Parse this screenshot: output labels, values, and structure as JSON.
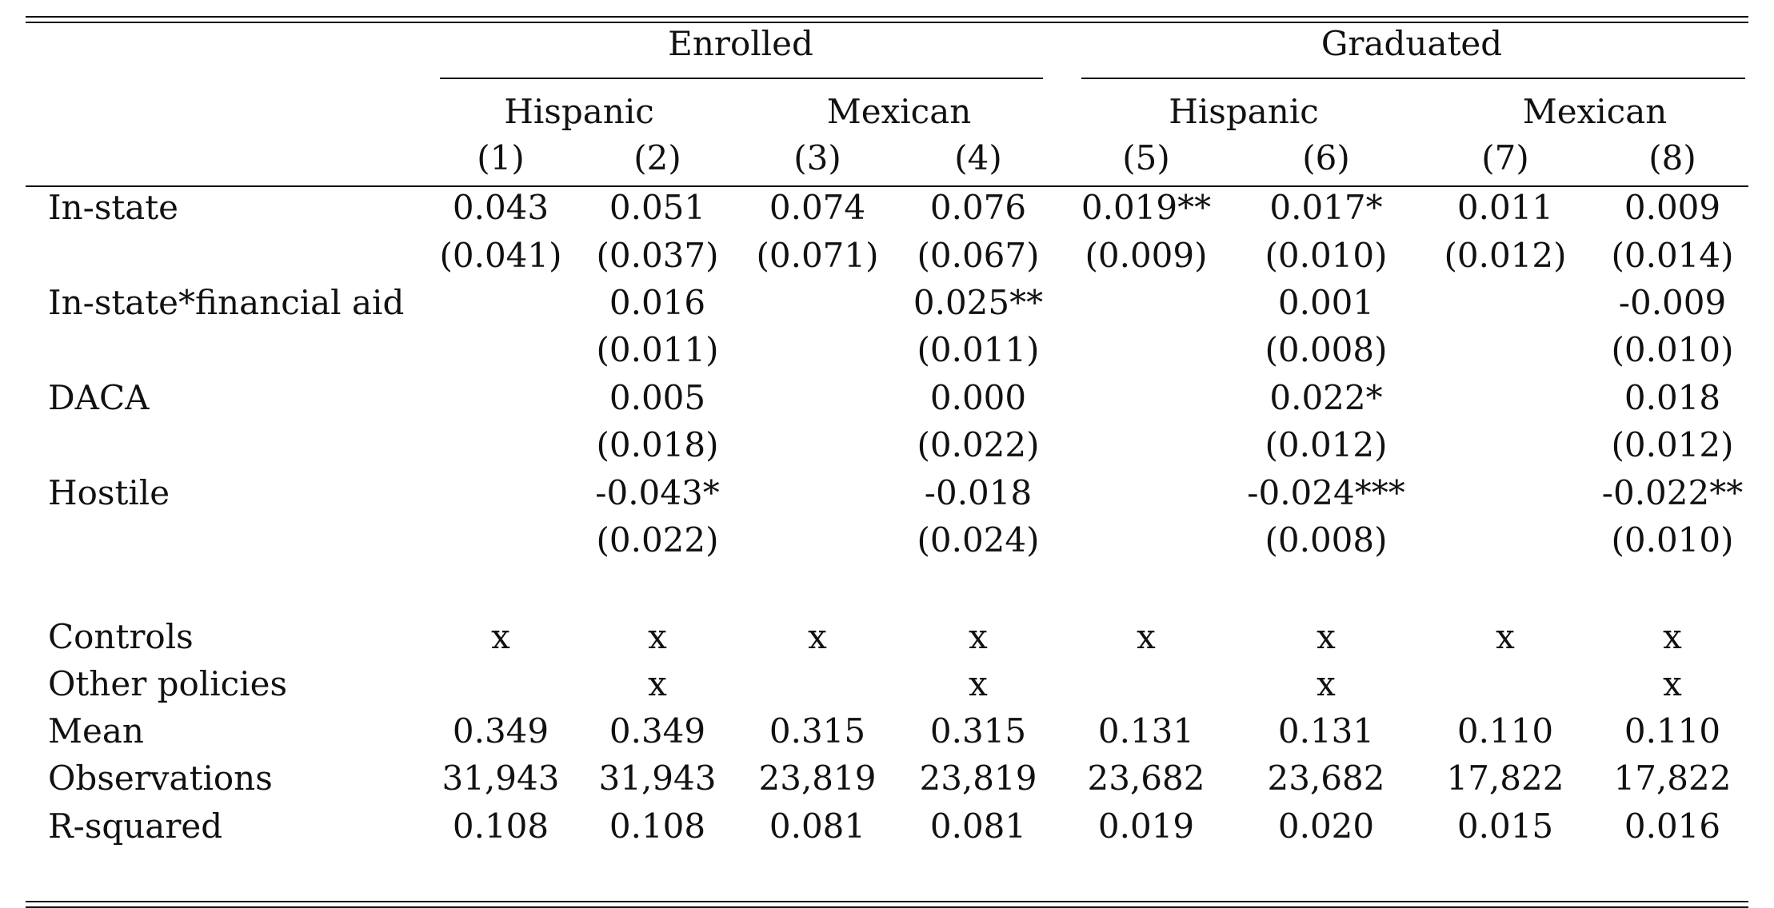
{
  "table": {
    "group_headers": [
      "Enrolled",
      "Graduated"
    ],
    "subgroup_headers": [
      "Hispanic",
      "Mexican",
      "Hispanic",
      "Mexican"
    ],
    "column_numbers": [
      "(1)",
      "(2)",
      "(3)",
      "(4)",
      "(5)",
      "(6)",
      "(7)",
      "(8)"
    ],
    "rows": [
      {
        "label": "In-state",
        "cells": [
          "0.043",
          "0.051",
          "0.074",
          "0.076",
          "0.019**",
          "0.017*",
          "0.011",
          "0.009"
        ]
      },
      {
        "label": "",
        "cells": [
          "(0.041)",
          "(0.037)",
          "(0.071)",
          "(0.067)",
          "(0.009)",
          "(0.010)",
          "(0.012)",
          "(0.014)"
        ]
      },
      {
        "label": "In-state*financial aid",
        "cells": [
          "",
          "0.016",
          "",
          "0.025**",
          "",
          "0.001",
          "",
          "-0.009"
        ]
      },
      {
        "label": "",
        "cells": [
          "",
          "(0.011)",
          "",
          "(0.011)",
          "",
          "(0.008)",
          "",
          "(0.010)"
        ]
      },
      {
        "label": "DACA",
        "cells": [
          "",
          "0.005",
          "",
          "0.000",
          "",
          "0.022*",
          "",
          "0.018"
        ]
      },
      {
        "label": "",
        "cells": [
          "",
          "(0.018)",
          "",
          "(0.022)",
          "",
          "(0.012)",
          "",
          "(0.012)"
        ]
      },
      {
        "label": "Hostile",
        "cells": [
          "",
          "-0.043*",
          "",
          "-0.018",
          "",
          "-0.024***",
          "",
          "-0.022**"
        ]
      },
      {
        "label": "",
        "cells": [
          "",
          "(0.022)",
          "",
          "(0.024)",
          "",
          "(0.008)",
          "",
          "(0.010)"
        ]
      }
    ],
    "stats_rows": [
      {
        "label": "Controls",
        "cells": [
          "x",
          "x",
          "x",
          "x",
          "x",
          "x",
          "x",
          "x"
        ]
      },
      {
        "label": "Other policies",
        "cells": [
          "",
          "x",
          "",
          "x",
          "",
          "x",
          "",
          "x"
        ]
      },
      {
        "label": "Mean",
        "cells": [
          "0.349",
          "0.349",
          "0.315",
          "0.315",
          "0.131",
          "0.131",
          "0.110",
          "0.110"
        ]
      },
      {
        "label": "Observations",
        "cells": [
          "31,943",
          "31,943",
          "23,819",
          "23,819",
          "23,682",
          "23,682",
          "17,822",
          "17,822"
        ]
      },
      {
        "label": "R-squared",
        "cells": [
          "0.108",
          "0.108",
          "0.081",
          "0.081",
          "0.019",
          "0.020",
          "0.015",
          "0.016"
        ]
      }
    ]
  }
}
